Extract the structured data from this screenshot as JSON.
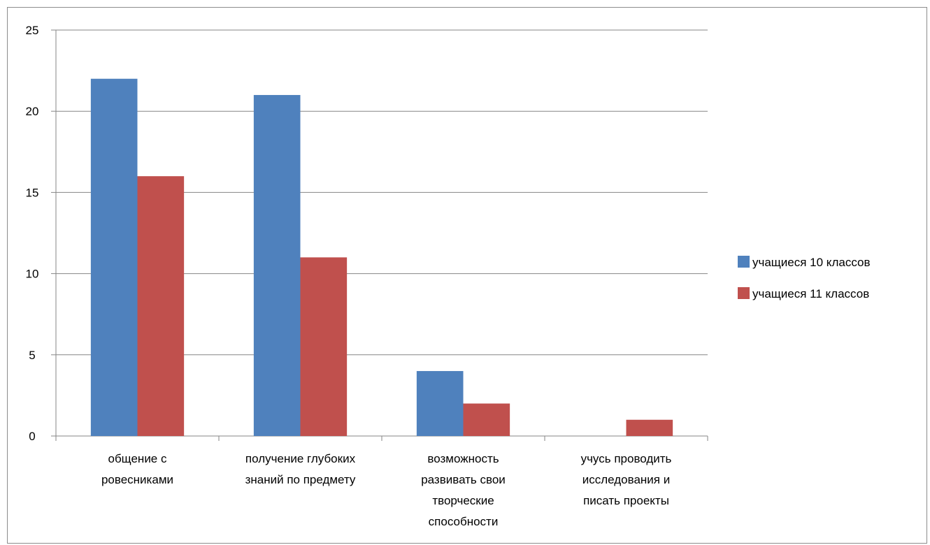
{
  "chart_data": {
    "type": "bar",
    "categories": [
      [
        "общение с",
        "ровесниками"
      ],
      [
        "получение глубоких",
        "знаний по предмету"
      ],
      [
        "возможность",
        "развивать свои",
        "творческие",
        "способности"
      ],
      [
        "учусь проводить",
        "исследования и",
        "писать проекты"
      ]
    ],
    "series": [
      {
        "name": "учащиеся 10 классов",
        "color": "#4f81bd",
        "values": [
          22,
          21,
          4,
          0
        ]
      },
      {
        "name": "учащиеся 11 классов",
        "color": "#c0504d",
        "values": [
          16,
          11,
          2,
          1
        ]
      }
    ],
    "ylim": [
      0,
      25
    ],
    "yticks": [
      0,
      5,
      10,
      15,
      20,
      25
    ],
    "grid": true,
    "legend_position": "right"
  }
}
